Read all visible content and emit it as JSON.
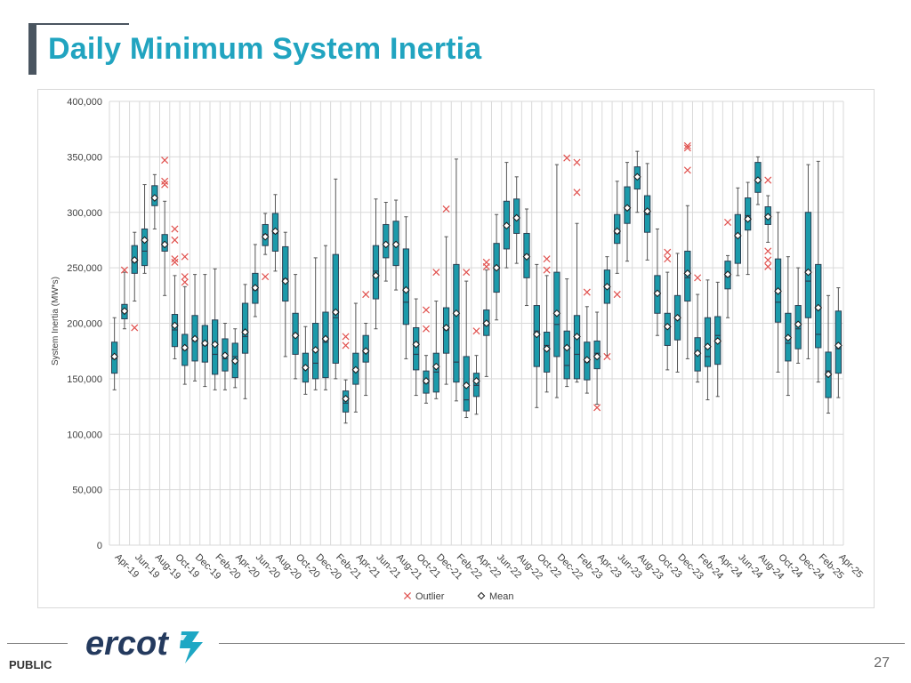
{
  "slide": {
    "title": "Daily Minimum System Inertia",
    "footer_label": "PUBLIC",
    "page_number": "27",
    "logo_text": "ercot"
  },
  "colors": {
    "title": "#21a4c0",
    "box_fill": "#1b9aaa",
    "box_stroke": "#2b3f52",
    "whisker": "#555555",
    "outlier": "#e0504d",
    "mean_fill": "#ffffff",
    "grid": "#d9d9d9",
    "logo": "#243a5e",
    "logo_accent": "#1ea7c4"
  },
  "chart_data": {
    "type": "boxplot",
    "title": "",
    "xlabel": "",
    "ylabel": "System Inertia (MW*s)",
    "ylim": [
      0,
      400000
    ],
    "yticks": [
      0,
      50000,
      100000,
      150000,
      200000,
      250000,
      300000,
      350000,
      400000
    ],
    "ytick_labels": [
      "0",
      "50,000",
      "100,000",
      "150,000",
      "200,000",
      "250,000",
      "300,000",
      "350,000",
      "400,000"
    ],
    "grid": true,
    "legend": {
      "placement": "bottom",
      "items": [
        {
          "name": "Outlier",
          "marker": "x"
        },
        {
          "name": "Mean",
          "marker": "diamond"
        }
      ]
    },
    "x_tick_labels": [
      "Apr-19",
      "Jun-19",
      "Aug-19",
      "Oct-19",
      "Dec-19",
      "Feb-20",
      "Apr-20",
      "Jun-20",
      "Aug-20",
      "Oct-20",
      "Dec-20",
      "Feb-21",
      "Apr-21",
      "Jun-21",
      "Aug-21",
      "Oct-21",
      "Dec-21",
      "Feb-22",
      "Apr-22",
      "Jun-22",
      "Aug-22",
      "Oct-22",
      "Dec-22",
      "Feb-23",
      "Apr-23",
      "Jun-23",
      "Aug-23",
      "Oct-23",
      "Dec-23",
      "Feb-24",
      "Apr-24",
      "Jun-24",
      "Aug-24",
      "Oct-24",
      "Dec-24",
      "Feb-25",
      "Apr-25"
    ],
    "months": [
      "Apr-19",
      "May-19",
      "Jun-19",
      "Jul-19",
      "Aug-19",
      "Sep-19",
      "Oct-19",
      "Nov-19",
      "Dec-19",
      "Jan-20",
      "Feb-20",
      "Mar-20",
      "Apr-20",
      "May-20",
      "Jun-20",
      "Jul-20",
      "Aug-20",
      "Sep-20",
      "Oct-20",
      "Nov-20",
      "Dec-20",
      "Jan-21",
      "Feb-21",
      "Mar-21",
      "Apr-21",
      "May-21",
      "Jun-21",
      "Jul-21",
      "Aug-21",
      "Sep-21",
      "Oct-21",
      "Nov-21",
      "Dec-21",
      "Jan-22",
      "Feb-22",
      "Mar-22",
      "Apr-22",
      "May-22",
      "Jun-22",
      "Jul-22",
      "Aug-22",
      "Sep-22",
      "Oct-22",
      "Nov-22",
      "Dec-22",
      "Jan-23",
      "Feb-23",
      "Mar-23",
      "Apr-23",
      "May-23",
      "Jun-23",
      "Jul-23",
      "Aug-23",
      "Sep-23",
      "Oct-23",
      "Nov-23",
      "Dec-23",
      "Jan-24",
      "Feb-24",
      "Mar-24",
      "Apr-24",
      "May-24",
      "Jun-24",
      "Jul-24",
      "Aug-24",
      "Sep-24",
      "Oct-24",
      "Nov-24",
      "Dec-24",
      "Jan-25",
      "Feb-25",
      "Mar-25",
      "Apr-25"
    ],
    "boxes": [
      {
        "min": 140000,
        "q1": 155000,
        "median": 168000,
        "q3": 183000,
        "max": 205000,
        "mean": 170000,
        "outliers": []
      },
      {
        "min": 195000,
        "q1": 204000,
        "median": 210000,
        "q3": 217000,
        "max": 246000,
        "mean": 211000,
        "outliers": [
          248000
        ]
      },
      {
        "min": 220000,
        "q1": 245000,
        "median": 255000,
        "q3": 270000,
        "max": 282000,
        "mean": 257000,
        "outliers": [
          196000
        ]
      },
      {
        "min": 245000,
        "q1": 252000,
        "median": 265000,
        "q3": 285000,
        "max": 325000,
        "mean": 275000,
        "outliers": []
      },
      {
        "min": 285000,
        "q1": 306000,
        "median": 313000,
        "q3": 324000,
        "max": 334000,
        "mean": 313000,
        "outliers": []
      },
      {
        "min": 225000,
        "q1": 265000,
        "median": 272000,
        "q3": 280000,
        "max": 310000,
        "mean": 271000,
        "outliers": [
          347000,
          328000,
          325000
        ]
      },
      {
        "min": 168000,
        "q1": 179000,
        "median": 194000,
        "q3": 208000,
        "max": 243000,
        "mean": 198000,
        "outliers": [
          285000,
          275000,
          258000,
          255000
        ]
      },
      {
        "min": 145000,
        "q1": 162000,
        "median": 176000,
        "q3": 190000,
        "max": 233000,
        "mean": 178000,
        "outliers": [
          260000,
          242000,
          237000
        ]
      },
      {
        "min": 148000,
        "q1": 166000,
        "median": 184000,
        "q3": 207000,
        "max": 244000,
        "mean": 186000,
        "outliers": []
      },
      {
        "min": 143000,
        "q1": 165000,
        "median": 180000,
        "q3": 198000,
        "max": 244000,
        "mean": 182000,
        "outliers": []
      },
      {
        "min": 140000,
        "q1": 154000,
        "median": 172000,
        "q3": 203000,
        "max": 249000,
        "mean": 181000,
        "outliers": []
      },
      {
        "min": 140000,
        "q1": 157000,
        "median": 168000,
        "q3": 186000,
        "max": 200000,
        "mean": 171000,
        "outliers": []
      },
      {
        "min": 142000,
        "q1": 151000,
        "median": 170000,
        "q3": 182000,
        "max": 195000,
        "mean": 166000,
        "outliers": []
      },
      {
        "min": 132000,
        "q1": 173000,
        "median": 188000,
        "q3": 218000,
        "max": 235000,
        "mean": 192000,
        "outliers": []
      },
      {
        "min": 206000,
        "q1": 218000,
        "median": 230000,
        "q3": 245000,
        "max": 271000,
        "mean": 232000,
        "outliers": []
      },
      {
        "min": 262000,
        "q1": 270000,
        "median": 280000,
        "q3": 289000,
        "max": 299000,
        "mean": 278000,
        "outliers": [
          242000
        ]
      },
      {
        "min": 247000,
        "q1": 265000,
        "median": 281000,
        "q3": 299000,
        "max": 316000,
        "mean": 283000,
        "outliers": []
      },
      {
        "min": 170000,
        "q1": 220000,
        "median": 240000,
        "q3": 269000,
        "max": 282000,
        "mean": 238000,
        "outliers": []
      },
      {
        "min": 150000,
        "q1": 172000,
        "median": 190000,
        "q3": 209000,
        "max": 244000,
        "mean": 189000,
        "outliers": []
      },
      {
        "min": 136000,
        "q1": 147000,
        "median": 161000,
        "q3": 173000,
        "max": 197000,
        "mean": 160000,
        "outliers": []
      },
      {
        "min": 140000,
        "q1": 150000,
        "median": 164000,
        "q3": 200000,
        "max": 259000,
        "mean": 176000,
        "outliers": []
      },
      {
        "min": 140000,
        "q1": 151000,
        "median": 183000,
        "q3": 210000,
        "max": 270000,
        "mean": 186000,
        "outliers": []
      },
      {
        "min": 150000,
        "q1": 164000,
        "median": 205000,
        "q3": 262000,
        "max": 330000,
        "mean": 210000,
        "outliers": []
      },
      {
        "min": 110000,
        "q1": 120000,
        "median": 128000,
        "q3": 139000,
        "max": 149000,
        "mean": 132000,
        "outliers": [
          188000,
          180000
        ]
      },
      {
        "min": 120000,
        "q1": 145000,
        "median": 159000,
        "q3": 173000,
        "max": 218000,
        "mean": 158000,
        "outliers": []
      },
      {
        "min": 135000,
        "q1": 165000,
        "median": 175000,
        "q3": 189000,
        "max": 200000,
        "mean": 175000,
        "outliers": [
          226000
        ]
      },
      {
        "min": 195000,
        "q1": 222000,
        "median": 247000,
        "q3": 270000,
        "max": 312000,
        "mean": 243000,
        "outliers": []
      },
      {
        "min": 238000,
        "q1": 259000,
        "median": 270000,
        "q3": 289000,
        "max": 309000,
        "mean": 271000,
        "outliers": []
      },
      {
        "min": 230000,
        "q1": 252000,
        "median": 272000,
        "q3": 292000,
        "max": 311000,
        "mean": 271000,
        "outliers": []
      },
      {
        "min": 168000,
        "q1": 199000,
        "median": 219000,
        "q3": 267000,
        "max": 296000,
        "mean": 230000,
        "outliers": []
      },
      {
        "min": 135000,
        "q1": 158000,
        "median": 172000,
        "q3": 196000,
        "max": 222000,
        "mean": 181000,
        "outliers": []
      },
      {
        "min": 128000,
        "q1": 137000,
        "median": 146000,
        "q3": 157000,
        "max": 171000,
        "mean": 148000,
        "outliers": [
          212000,
          195000
        ]
      },
      {
        "min": 132000,
        "q1": 138000,
        "median": 156000,
        "q3": 173000,
        "max": 220000,
        "mean": 161000,
        "outliers": [
          246000
        ]
      },
      {
        "min": 145000,
        "q1": 173000,
        "median": 194000,
        "q3": 214000,
        "max": 278000,
        "mean": 196000,
        "outliers": [
          303000
        ]
      },
      {
        "min": 130000,
        "q1": 147000,
        "median": 165000,
        "q3": 253000,
        "max": 348000,
        "mean": 209000,
        "outliers": []
      },
      {
        "min": 115000,
        "q1": 121000,
        "median": 131000,
        "q3": 170000,
        "max": 238000,
        "mean": 144000,
        "outliers": [
          246000
        ]
      },
      {
        "min": 118000,
        "q1": 134000,
        "median": 144000,
        "q3": 155000,
        "max": 171000,
        "mean": 148000,
        "outliers": [
          193000
        ]
      },
      {
        "min": 152000,
        "q1": 189000,
        "median": 198000,
        "q3": 212000,
        "max": 248000,
        "mean": 200000,
        "outliers": [
          255000,
          251000
        ]
      },
      {
        "min": 203000,
        "q1": 228000,
        "median": 249000,
        "q3": 272000,
        "max": 298000,
        "mean": 250000,
        "outliers": []
      },
      {
        "min": 250000,
        "q1": 267000,
        "median": 287000,
        "q3": 310000,
        "max": 345000,
        "mean": 288000,
        "outliers": []
      },
      {
        "min": 254000,
        "q1": 281000,
        "median": 296000,
        "q3": 312000,
        "max": 332000,
        "mean": 295000,
        "outliers": []
      },
      {
        "min": 216000,
        "q1": 241000,
        "median": 262000,
        "q3": 281000,
        "max": 303000,
        "mean": 260000,
        "outliers": []
      },
      {
        "min": 124000,
        "q1": 161000,
        "median": 193000,
        "q3": 216000,
        "max": 253000,
        "mean": 190000,
        "outliers": []
      },
      {
        "min": 138000,
        "q1": 156000,
        "median": 180000,
        "q3": 192000,
        "max": 243000,
        "mean": 177000,
        "outliers": [
          258000,
          248000
        ]
      },
      {
        "min": 133000,
        "q1": 170000,
        "median": 199000,
        "q3": 246000,
        "max": 343000,
        "mean": 209000,
        "outliers": []
      },
      {
        "min": 143000,
        "q1": 150000,
        "median": 162000,
        "q3": 193000,
        "max": 240000,
        "mean": 178000,
        "outliers": [
          349000
        ]
      },
      {
        "min": 147000,
        "q1": 150000,
        "median": 172000,
        "q3": 207000,
        "max": 290000,
        "mean": 188000,
        "outliers": [
          345000,
          318000
        ]
      },
      {
        "min": 137000,
        "q1": 149000,
        "median": 165000,
        "q3": 183000,
        "max": 215000,
        "mean": 167000,
        "outliers": [
          228000
        ]
      },
      {
        "min": 127000,
        "q1": 159000,
        "median": 173000,
        "q3": 184000,
        "max": 210000,
        "mean": 170000,
        "outliers": [
          124000
        ]
      },
      {
        "min": 171000,
        "q1": 218000,
        "median": 232000,
        "q3": 248000,
        "max": 260000,
        "mean": 233000,
        "outliers": [
          170000
        ]
      },
      {
        "min": 245000,
        "q1": 272000,
        "median": 281000,
        "q3": 298000,
        "max": 328000,
        "mean": 283000,
        "outliers": [
          226000
        ]
      },
      {
        "min": 256000,
        "q1": 290000,
        "median": 305000,
        "q3": 323000,
        "max": 345000,
        "mean": 304000,
        "outliers": []
      },
      {
        "min": 300000,
        "q1": 321000,
        "median": 333000,
        "q3": 341000,
        "max": 355000,
        "mean": 332000,
        "outliers": []
      },
      {
        "min": 257000,
        "q1": 282000,
        "median": 298000,
        "q3": 315000,
        "max": 344000,
        "mean": 301000,
        "outliers": []
      },
      {
        "min": 189000,
        "q1": 209000,
        "median": 228000,
        "q3": 243000,
        "max": 285000,
        "mean": 227000,
        "outliers": []
      },
      {
        "min": 158000,
        "q1": 180000,
        "median": 196000,
        "q3": 209000,
        "max": 246000,
        "mean": 197000,
        "outliers": [
          264000,
          258000
        ]
      },
      {
        "min": 156000,
        "q1": 185000,
        "median": 205000,
        "q3": 225000,
        "max": 263000,
        "mean": 205000,
        "outliers": []
      },
      {
        "min": 168000,
        "q1": 220000,
        "median": 241000,
        "q3": 265000,
        "max": 306000,
        "mean": 245000,
        "outliers": [
          360000,
          358000,
          338000
        ]
      },
      {
        "min": 147000,
        "q1": 157000,
        "median": 173000,
        "q3": 187000,
        "max": 226000,
        "mean": 173000,
        "outliers": [
          241000
        ]
      },
      {
        "min": 131000,
        "q1": 161000,
        "median": 170000,
        "q3": 205000,
        "max": 239000,
        "mean": 179000,
        "outliers": []
      },
      {
        "min": 134000,
        "q1": 163000,
        "median": 189000,
        "q3": 206000,
        "max": 237000,
        "mean": 184000,
        "outliers": []
      },
      {
        "min": 205000,
        "q1": 231000,
        "median": 242000,
        "q3": 256000,
        "max": 261000,
        "mean": 244000,
        "outliers": [
          291000
        ]
      },
      {
        "min": 243000,
        "q1": 254000,
        "median": 280000,
        "q3": 298000,
        "max": 322000,
        "mean": 279000,
        "outliers": []
      },
      {
        "min": 244000,
        "q1": 284000,
        "median": 297000,
        "q3": 313000,
        "max": 327000,
        "mean": 294000,
        "outliers": []
      },
      {
        "min": 307000,
        "q1": 318000,
        "median": 329000,
        "q3": 345000,
        "max": 350000,
        "mean": 329000,
        "outliers": []
      },
      {
        "min": 273000,
        "q1": 289000,
        "median": 296000,
        "q3": 305000,
        "max": 315000,
        "mean": 296000,
        "outliers": [
          329000,
          265000,
          257000,
          251000
        ]
      },
      {
        "min": 156000,
        "q1": 201000,
        "median": 219000,
        "q3": 258000,
        "max": 300000,
        "mean": 229000,
        "outliers": []
      },
      {
        "min": 135000,
        "q1": 166000,
        "median": 182000,
        "q3": 209000,
        "max": 260000,
        "mean": 187000,
        "outliers": []
      },
      {
        "min": 164000,
        "q1": 177000,
        "median": 195000,
        "q3": 216000,
        "max": 250000,
        "mean": 199000,
        "outliers": []
      },
      {
        "min": 168000,
        "q1": 205000,
        "median": 238000,
        "q3": 300000,
        "max": 343000,
        "mean": 246000,
        "outliers": []
      },
      {
        "min": 147000,
        "q1": 178000,
        "median": 190000,
        "q3": 253000,
        "max": 346000,
        "mean": 214000,
        "outliers": []
      },
      {
        "min": 119000,
        "q1": 133000,
        "median": 157000,
        "q3": 174000,
        "max": 225000,
        "mean": 154000,
        "outliers": []
      },
      {
        "min": 133000,
        "q1": 155000,
        "median": 177000,
        "q3": 211000,
        "max": 232000,
        "mean": 180000,
        "outliers": []
      }
    ]
  }
}
